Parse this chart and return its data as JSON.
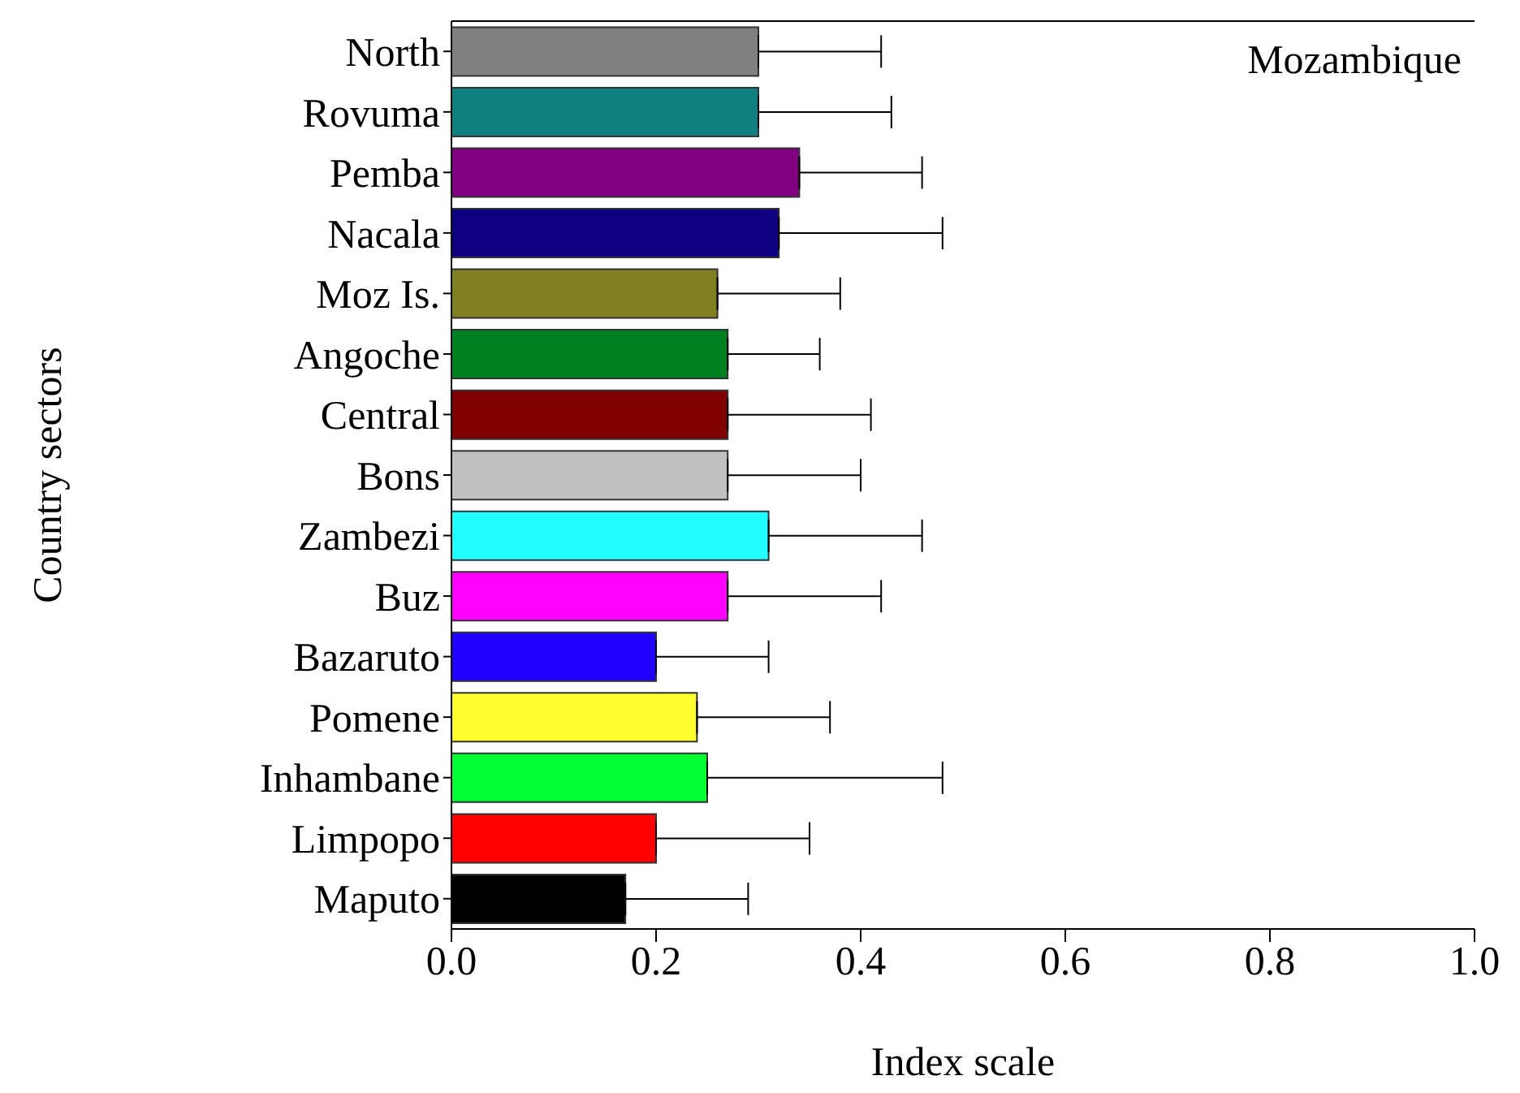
{
  "chart_data": {
    "type": "bar",
    "orientation": "horizontal",
    "xlabel": "Index scale",
    "ylabel": "Country sectors",
    "annotations": [
      "Mozambique"
    ],
    "categories": [
      "North",
      "Rovuma",
      "Pemba",
      "Nacala",
      "Moz Is.",
      "Angoche",
      "Central",
      "Bons",
      "Zambezi",
      "Buz",
      "Bazaruto",
      "Pomene",
      "Inhambane",
      "Limpopo",
      "Maputo"
    ],
    "values": [
      0.3,
      0.3,
      0.34,
      0.32,
      0.26,
      0.27,
      0.27,
      0.27,
      0.31,
      0.27,
      0.2,
      0.24,
      0.25,
      0.2,
      0.17
    ],
    "errors": [
      [
        0.3,
        0.42
      ],
      [
        0.3,
        0.43
      ],
      [
        0.34,
        0.46
      ],
      [
        0.32,
        0.48
      ],
      [
        0.26,
        0.38
      ],
      [
        0.27,
        0.36
      ],
      [
        0.27,
        0.41
      ],
      [
        0.27,
        0.4
      ],
      [
        0.31,
        0.46
      ],
      [
        0.27,
        0.42
      ],
      [
        0.2,
        0.31
      ],
      [
        0.24,
        0.37
      ],
      [
        0.25,
        0.48
      ],
      [
        0.2,
        0.35
      ],
      [
        0.17,
        0.29
      ]
    ],
    "colors": [
      "#808080",
      "#0e8080",
      "#800080",
      "#0e0080",
      "#808020",
      "#008020",
      "#800000",
      "#c0c0c0",
      "#20ffff",
      "#ff00ff",
      "#2000ff",
      "#ffff30",
      "#00ff30",
      "#ff0000",
      "#000000"
    ],
    "xlim": [
      0,
      1
    ],
    "xticks": [
      {
        "value": 0,
        "label": "0.0"
      },
      {
        "value": 0.2,
        "label": "0.2"
      },
      {
        "value": 0.4,
        "label": "0.4"
      },
      {
        "value": 0.6,
        "label": "0.6"
      },
      {
        "value": 0.8,
        "label": "0.8"
      },
      {
        "value": 1,
        "label": "1.0"
      }
    ],
    "grid": false,
    "legend": false
  }
}
